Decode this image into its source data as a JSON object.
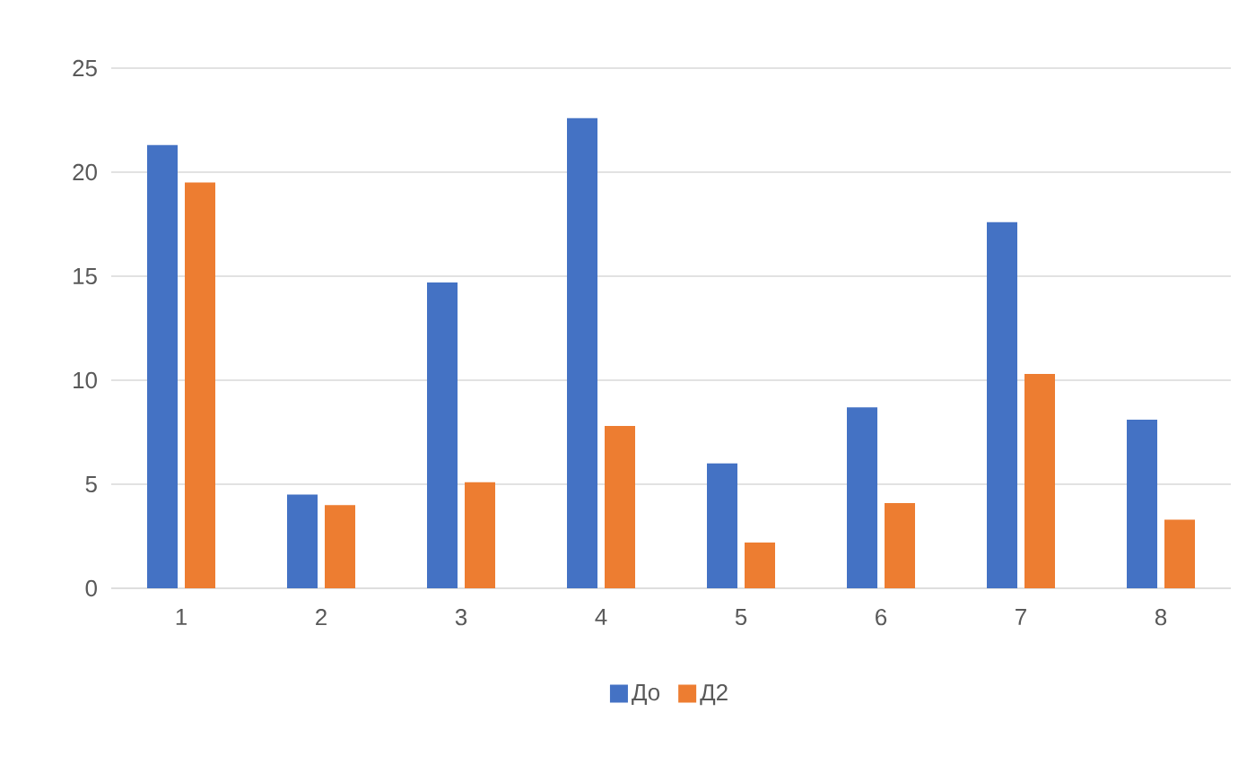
{
  "chart_data": {
    "type": "bar",
    "categories": [
      "1",
      "2",
      "3",
      "4",
      "5",
      "6",
      "7",
      "8"
    ],
    "series": [
      {
        "name": "До",
        "color": "#4472c4",
        "values": [
          21.3,
          4.5,
          14.7,
          22.6,
          6.0,
          8.7,
          17.6,
          8.1
        ]
      },
      {
        "name": "Д2",
        "color": "#ed7d31",
        "values": [
          19.5,
          4.0,
          5.1,
          7.8,
          2.2,
          4.1,
          10.3,
          3.3
        ]
      }
    ],
    "ylim": [
      0,
      25
    ],
    "yticks": [
      0,
      5,
      10,
      15,
      20,
      25
    ],
    "grid": "y",
    "legend": "bottom"
  }
}
